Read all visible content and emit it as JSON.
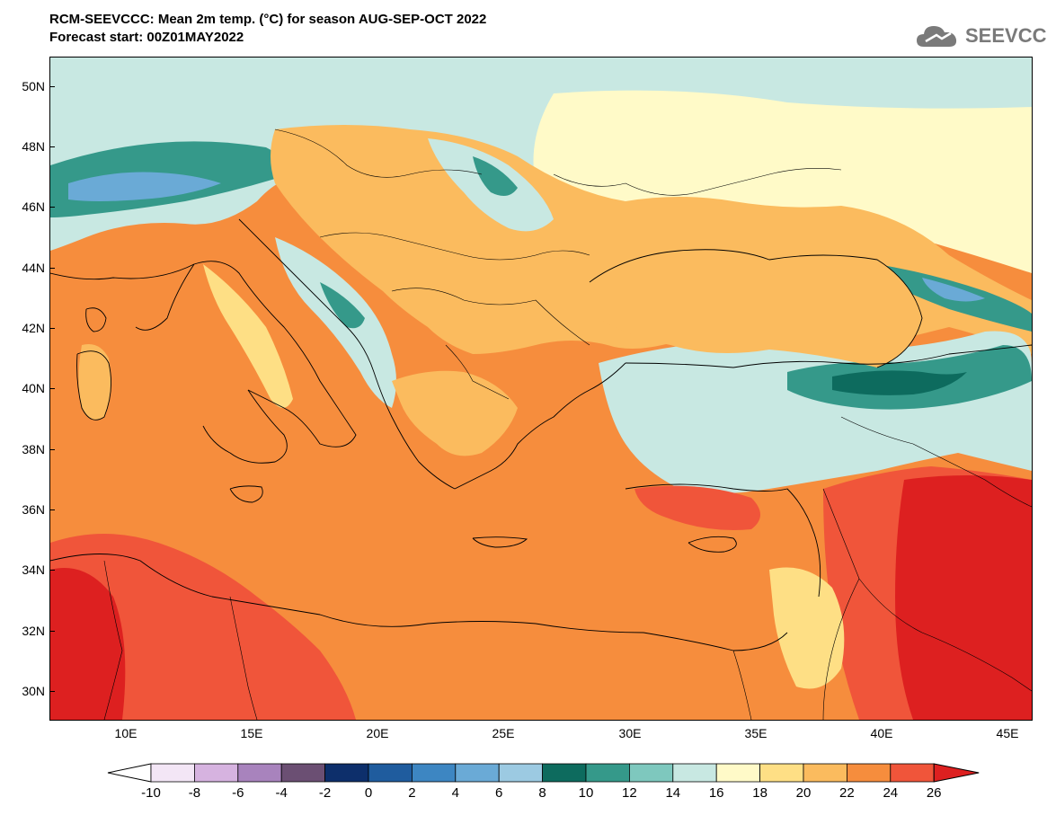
{
  "title": {
    "line1": "RCM-SEEVCCC: Mean 2m temp. (°C) for season AUG-SEP-OCT 2022",
    "line2": "Forecast start: 00Z01MAY2022"
  },
  "logo": {
    "text": "SEEVCCC",
    "icon": "cloud-icon"
  },
  "map": {
    "lon_range": [
      7,
      46
    ],
    "lat_range": [
      29,
      51
    ],
    "lat_ticks": [
      "50N",
      "48N",
      "46N",
      "44N",
      "42N",
      "40N",
      "38N",
      "36N",
      "34N",
      "32N",
      "30N"
    ],
    "lon_ticks": [
      "10E",
      "15E",
      "20E",
      "25E",
      "30E",
      "35E",
      "40E",
      "45E"
    ]
  },
  "colorbar": {
    "labels": [
      "-10",
      "-8",
      "-6",
      "-4",
      "-2",
      "0",
      "2",
      "4",
      "6",
      "8",
      "10",
      "12",
      "14",
      "16",
      "18",
      "20",
      "22",
      "24",
      "26"
    ],
    "low_color": "#ffffff",
    "colors": [
      "#f3e6f6",
      "#d6b3e0",
      "#a883bd",
      "#6b4f73",
      "#0d2f6b",
      "#1f5c9e",
      "#3d86c2",
      "#6aaad6",
      "#9ccae2",
      "#0d6b5e",
      "#35998a",
      "#7ec8be",
      "#c8e8e2",
      "#fffac8",
      "#fedf85",
      "#fbbb5e",
      "#f68d3d",
      "#f0553a"
    ],
    "high_color": "#dd2020"
  },
  "colors": {
    "sea_warm": "#f68d3d",
    "land_mild": "#fbbb5e",
    "land_cool": "#c8e8e2",
    "mountain": "#35998a",
    "hot": "#dd2020",
    "hot2": "#f0553a",
    "cream": "#fffac8"
  }
}
